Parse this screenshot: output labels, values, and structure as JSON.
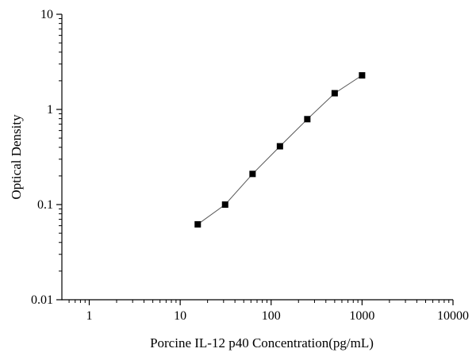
{
  "chart_data": {
    "type": "line",
    "xlabel": "Porcine IL-12 p40 Concentration(pg/mL)",
    "ylabel": "Optical Density",
    "x_scale": "log",
    "y_scale": "log",
    "xlim": [
      0.5,
      10000
    ],
    "ylim": [
      0.01,
      10
    ],
    "x_ticks": [
      {
        "value": 1,
        "label": "1"
      },
      {
        "value": 10,
        "label": "10"
      },
      {
        "value": 100,
        "label": "100"
      },
      {
        "value": 1000,
        "label": "1000"
      },
      {
        "value": 10000,
        "label": "10000"
      }
    ],
    "y_ticks": [
      {
        "value": 0.01,
        "label": "0.01"
      },
      {
        "value": 0.1,
        "label": "0.1"
      },
      {
        "value": 1,
        "label": "1"
      },
      {
        "value": 10,
        "label": "10"
      }
    ],
    "grid": false,
    "legend": "none",
    "marker": "square",
    "series": [
      {
        "x": [
          15.6,
          31.2,
          62.5,
          125,
          250,
          500,
          1000
        ],
        "y": [
          0.062,
          0.1,
          0.21,
          0.41,
          0.79,
          1.48,
          2.28
        ]
      }
    ],
    "colors": {
      "line": "#555555",
      "marker": "#000000",
      "axis": "#000000"
    }
  }
}
